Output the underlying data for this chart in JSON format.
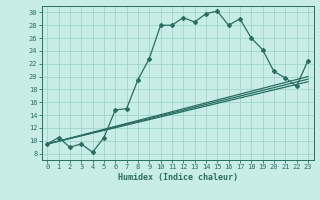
{
  "xlabel": "Humidex (Indice chaleur)",
  "bg_color": "#c8ece6",
  "grid_color": "#a0d4cc",
  "line_color": "#2a6e62",
  "ylim": [
    7,
    31
  ],
  "xlim": [
    -0.5,
    23.5
  ],
  "yticks": [
    8,
    10,
    12,
    14,
    16,
    18,
    20,
    22,
    24,
    26,
    28,
    30
  ],
  "xticks": [
    0,
    1,
    2,
    3,
    4,
    5,
    6,
    7,
    8,
    9,
    10,
    11,
    12,
    13,
    14,
    15,
    16,
    17,
    18,
    19,
    20,
    21,
    22,
    23
  ],
  "curve1_x": [
    0,
    1,
    2,
    3,
    4,
    5,
    6,
    7,
    8,
    9,
    10,
    11,
    12,
    13,
    14,
    15,
    16,
    17,
    18,
    19,
    20,
    21,
    22,
    23
  ],
  "curve1_y": [
    9.5,
    10.5,
    9.0,
    9.5,
    8.2,
    10.5,
    14.8,
    15.0,
    19.5,
    22.8,
    28.0,
    28.0,
    29.2,
    28.5,
    29.8,
    30.2,
    28.0,
    29.0,
    26.0,
    24.2,
    20.8,
    19.8,
    18.5,
    22.5
  ],
  "line2_x": [
    0,
    23
  ],
  "line2_y": [
    9.5,
    19.2
  ],
  "line3_x": [
    0,
    23
  ],
  "line3_y": [
    9.5,
    20.0
  ],
  "line4_x": [
    0,
    23
  ],
  "line4_y": [
    9.5,
    19.6
  ]
}
